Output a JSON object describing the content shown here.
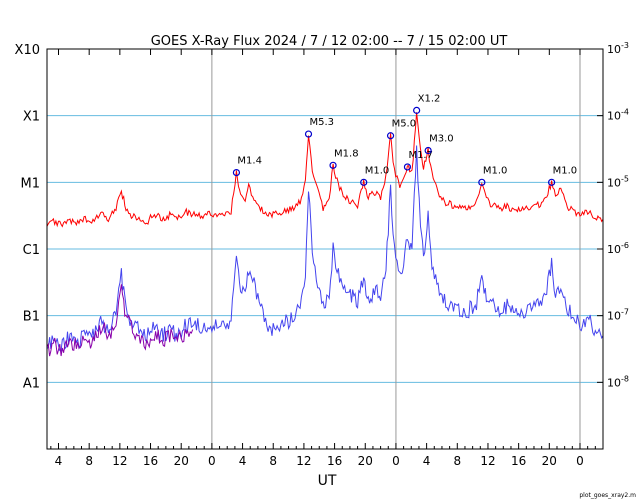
{
  "chart_data": {
    "type": "line",
    "title": "GOES X-Ray Flux   2024  /  7  /  12    02:00  --   7  /  15    02:00    UT",
    "xlabel": "UT",
    "footer": "plot_goes_xray2.m",
    "x_range_hours": [
      -21.5,
      51.0
    ],
    "x_ticks": [
      {
        "h": -20,
        "label": "4"
      },
      {
        "h": -16,
        "label": "8"
      },
      {
        "h": -12,
        "label": "12"
      },
      {
        "h": -8,
        "label": "16"
      },
      {
        "h": -4,
        "label": "20"
      },
      {
        "h": 0,
        "label": "0"
      },
      {
        "h": 4,
        "label": "4"
      },
      {
        "h": 8,
        "label": "8"
      },
      {
        "h": 12,
        "label": "12"
      },
      {
        "h": 16,
        "label": "16"
      },
      {
        "h": 20,
        "label": "20"
      },
      {
        "h": 24,
        "label": "0"
      },
      {
        "h": 28,
        "label": "4"
      },
      {
        "h": 32,
        "label": "8"
      },
      {
        "h": 36,
        "label": "12"
      },
      {
        "h": 40,
        "label": "16"
      },
      {
        "h": 44,
        "label": "20"
      },
      {
        "h": 48,
        "label": "0"
      }
    ],
    "day_boundaries_hours": [
      0,
      24,
      48
    ],
    "y_scale": "log",
    "y_range": [
      1e-09,
      0.001
    ],
    "left_class_labels": [
      {
        "label": "X10",
        "value": 0.001
      },
      {
        "label": "X1",
        "value": 0.0001
      },
      {
        "label": "M1",
        "value": 1e-05
      },
      {
        "label": "C1",
        "value": 1e-06
      },
      {
        "label": "B1",
        "value": 1e-07
      },
      {
        "label": "A1",
        "value": 1e-08
      }
    ],
    "right_tick_labels": [
      {
        "base": "10",
        "exp": "-3",
        "value": 0.001
      },
      {
        "base": "10",
        "exp": "-4",
        "value": 0.0001
      },
      {
        "base": "10",
        "exp": "-5",
        "value": 1e-05
      },
      {
        "base": "10",
        "exp": "-6",
        "value": 1e-06
      },
      {
        "base": "10",
        "exp": "-7",
        "value": 1e-07
      },
      {
        "base": "10",
        "exp": "-8",
        "value": 1e-08
      }
    ],
    "grid_levels": [
      0.0001,
      1e-05,
      1e-06,
      1e-07,
      1e-08
    ],
    "series": [
      {
        "color": "#ff0000",
        "points": [
          [
            -21.5,
            2.2e-06
          ],
          [
            -20.5,
            2.6e-06
          ],
          [
            -19.5,
            2.3e-06
          ],
          [
            -18.5,
            2.6e-06
          ],
          [
            -17.5,
            2.4e-06
          ],
          [
            -16.5,
            2.8e-06
          ],
          [
            -15.5,
            2.5e-06
          ],
          [
            -14.5,
            3.5e-06
          ],
          [
            -13.5,
            2.8e-06
          ],
          [
            -12.5,
            4e-06
          ],
          [
            -11.8,
            7.5e-06
          ],
          [
            -11.2,
            4e-06
          ],
          [
            -10.5,
            3.2e-06
          ],
          [
            -9.5,
            2.7e-06
          ],
          [
            -8.5,
            2.5e-06
          ],
          [
            -7.5,
            3.4e-06
          ],
          [
            -6.5,
            2.8e-06
          ],
          [
            -5.5,
            3.2e-06
          ],
          [
            -4.5,
            2.9e-06
          ],
          [
            -3.5,
            3.6e-06
          ],
          [
            -2.5,
            3.4e-06
          ],
          [
            -1.5,
            3.2e-06
          ],
          [
            -0.5,
            3.3e-06
          ],
          [
            0.5,
            3.3e-06
          ],
          [
            1.5,
            3.2e-06
          ],
          [
            2.5,
            3.6e-06
          ],
          [
            3.2,
            1.4e-05
          ],
          [
            3.6,
            7e-06
          ],
          [
            4.2,
            5e-06
          ],
          [
            4.8,
            9e-06
          ],
          [
            5.5,
            5e-06
          ],
          [
            6.5,
            4e-06
          ],
          [
            7.5,
            3.2e-06
          ],
          [
            8.5,
            3.4e-06
          ],
          [
            9.5,
            3.7e-06
          ],
          [
            10.5,
            4e-06
          ],
          [
            11.5,
            5e-06
          ],
          [
            12.2,
            1e-05
          ],
          [
            12.6,
            5.3e-05
          ],
          [
            13.1,
            1.5e-05
          ],
          [
            13.8,
            8e-06
          ],
          [
            14.5,
            4e-06
          ],
          [
            15.3,
            6e-06
          ],
          [
            15.8,
            1.8e-05
          ],
          [
            16.5,
            9e-06
          ],
          [
            17.3,
            6e-06
          ],
          [
            18.2,
            5e-06
          ],
          [
            19,
            4.5e-06
          ],
          [
            19.8,
            1e-05
          ],
          [
            20.4,
            6e-06
          ],
          [
            21.2,
            7e-06
          ],
          [
            22,
            6e-06
          ],
          [
            22.7,
            1.2e-05
          ],
          [
            23.3,
            5e-05
          ],
          [
            23.8,
            1.5e-05
          ],
          [
            24.5,
            9e-06
          ],
          [
            25,
            1.1e-05
          ],
          [
            25.5,
            1.7e-05
          ],
          [
            26.1,
            1.4e-05
          ],
          [
            26.7,
            0.00012
          ],
          [
            27.2,
            3e-05
          ],
          [
            27.6,
            1.6e-05
          ],
          [
            28.2,
            3e-05
          ],
          [
            28.7,
            1.4e-05
          ],
          [
            29.5,
            7e-06
          ],
          [
            30.5,
            5e-06
          ],
          [
            31.5,
            4.5e-06
          ],
          [
            32.5,
            4e-06
          ],
          [
            33.5,
            4.3e-06
          ],
          [
            34.5,
            5e-06
          ],
          [
            35.2,
            1e-05
          ],
          [
            35.8,
            5.5e-06
          ],
          [
            36.5,
            4.6e-06
          ],
          [
            37.5,
            4e-06
          ],
          [
            38.5,
            4.4e-06
          ],
          [
            39.5,
            3.7e-06
          ],
          [
            40.5,
            4e-06
          ],
          [
            41.5,
            4.2e-06
          ],
          [
            42.5,
            4.5e-06
          ],
          [
            43.5,
            5.5e-06
          ],
          [
            44.3,
            1e-05
          ],
          [
            44.8,
            6e-06
          ],
          [
            45.5,
            8e-06
          ],
          [
            46.2,
            4.5e-06
          ],
          [
            47,
            3.8e-06
          ],
          [
            48,
            3.2e-06
          ],
          [
            49,
            3.6e-06
          ],
          [
            50,
            3e-06
          ],
          [
            51,
            2.8e-06
          ]
        ]
      },
      {
        "color": "#4444ee",
        "points": [
          [
            -21.5,
            3.5e-08
          ],
          [
            -20.5,
            4.5e-08
          ],
          [
            -19.5,
            3.5e-08
          ],
          [
            -18.5,
            5e-08
          ],
          [
            -17.5,
            4e-08
          ],
          [
            -16.5,
            6e-08
          ],
          [
            -15.5,
            5e-08
          ],
          [
            -14.5,
            9e-08
          ],
          [
            -13.5,
            6e-08
          ],
          [
            -12.5,
            1e-07
          ],
          [
            -11.8,
            4e-07
          ],
          [
            -11.2,
            1.2e-07
          ],
          [
            -10.5,
            8e-08
          ],
          [
            -9.5,
            6e-08
          ],
          [
            -8.5,
            5e-08
          ],
          [
            -7.5,
            6.5e-08
          ],
          [
            -6.5,
            5e-08
          ],
          [
            -5.5,
            6e-08
          ],
          [
            -4.5,
            5e-08
          ],
          [
            -3.5,
            7e-08
          ],
          [
            -2.5,
            8e-08
          ],
          [
            -1.5,
            7e-08
          ],
          [
            -0.5,
            7e-08
          ],
          [
            0.5,
            7e-08
          ],
          [
            1.5,
            6.5e-08
          ],
          [
            2.5,
            8e-08
          ],
          [
            3.2,
            1e-06
          ],
          [
            3.6,
            3e-07
          ],
          [
            4.2,
            2e-07
          ],
          [
            4.8,
            5e-07
          ],
          [
            5.5,
            3e-07
          ],
          [
            6.5,
            1.2e-07
          ],
          [
            7.5,
            6e-08
          ],
          [
            8.5,
            6.5e-08
          ],
          [
            9.5,
            8e-08
          ],
          [
            10.5,
            9e-08
          ],
          [
            11.5,
            1.5e-07
          ],
          [
            12.2,
            4e-07
          ],
          [
            12.6,
            9e-06
          ],
          [
            13.1,
            1e-06
          ],
          [
            13.8,
            3e-07
          ],
          [
            14.5,
            1.3e-07
          ],
          [
            15.3,
            2e-07
          ],
          [
            15.8,
            1e-06
          ],
          [
            16.5,
            4e-07
          ],
          [
            17.3,
            2.5e-07
          ],
          [
            18.2,
            2e-07
          ],
          [
            19,
            1.5e-07
          ],
          [
            19.8,
            4e-07
          ],
          [
            20.4,
            1.6e-07
          ],
          [
            21.2,
            2.5e-07
          ],
          [
            22,
            1.8e-07
          ],
          [
            22.7,
            5e-07
          ],
          [
            23.3,
            8e-06
          ],
          [
            23.8,
            1e-06
          ],
          [
            24.5,
            4e-07
          ],
          [
            25,
            6e-07
          ],
          [
            25.5,
            1.5e-06
          ],
          [
            26.1,
            1e-06
          ],
          [
            26.7,
            3e-05
          ],
          [
            27.2,
            2e-06
          ],
          [
            27.6,
            8e-07
          ],
          [
            28.2,
            3e-06
          ],
          [
            28.7,
            6e-07
          ],
          [
            29.5,
            2.5e-07
          ],
          [
            30.5,
            1.5e-07
          ],
          [
            31.5,
            1.3e-07
          ],
          [
            32.5,
            1.1e-07
          ],
          [
            33.5,
            1.2e-07
          ],
          [
            34.5,
            1.6e-07
          ],
          [
            35.2,
            4e-07
          ],
          [
            35.8,
            1.8e-07
          ],
          [
            36.5,
            1.5e-07
          ],
          [
            37.5,
            1.2e-07
          ],
          [
            38.5,
            1.4e-07
          ],
          [
            39.5,
            1e-07
          ],
          [
            40.5,
            1.2e-07
          ],
          [
            41.5,
            1.3e-07
          ],
          [
            42.5,
            1.5e-07
          ],
          [
            43.5,
            2e-07
          ],
          [
            44.3,
            6e-07
          ],
          [
            44.8,
            2e-07
          ],
          [
            45.5,
            3e-07
          ],
          [
            46.2,
            1.4e-07
          ],
          [
            47,
            1e-07
          ],
          [
            48,
            7e-08
          ],
          [
            49,
            9e-08
          ],
          [
            50,
            6e-08
          ],
          [
            51,
            5e-08
          ]
        ]
      },
      {
        "color": "#8800aa",
        "points": [
          [
            -21.5,
            2.8e-08
          ],
          [
            -20.5,
            3.6e-08
          ],
          [
            -19.5,
            3e-08
          ],
          [
            -18.5,
            4e-08
          ],
          [
            -17.5,
            3.4e-08
          ],
          [
            -16.5,
            4.8e-08
          ],
          [
            -15.5,
            4e-08
          ],
          [
            -14.5,
            7e-08
          ],
          [
            -13.5,
            5e-08
          ],
          [
            -12.5,
            8e-08
          ],
          [
            -11.8,
            3e-07
          ],
          [
            -11.2,
            9e-08
          ],
          [
            -10.5,
            6.5e-08
          ],
          [
            -9.5,
            5e-08
          ],
          [
            -8.5,
            4e-08
          ],
          [
            -7.5,
            5.2e-08
          ],
          [
            -6.5,
            4.2e-08
          ],
          [
            -5.5,
            5e-08
          ],
          [
            -4.5,
            4.2e-08
          ],
          [
            -3.5,
            5.5e-08
          ],
          [
            -2.5,
            6.2e-08
          ]
        ]
      }
    ],
    "flares": [
      {
        "label": "M1.4",
        "h": 3.2,
        "value": 1.4e-05
      },
      {
        "label": "M5.3",
        "h": 12.6,
        "value": 5.3e-05
      },
      {
        "label": "M1.8",
        "h": 15.8,
        "value": 1.8e-05
      },
      {
        "label": "M1.0",
        "h": 19.8,
        "value": 1e-05
      },
      {
        "label": "M5.0",
        "h": 23.3,
        "value": 5e-05
      },
      {
        "label": "M1.7",
        "h": 25.5,
        "value": 1.7e-05
      },
      {
        "label": "X1.2",
        "h": 26.7,
        "value": 0.00012
      },
      {
        "label": "M3.0",
        "h": 28.2,
        "value": 3e-05
      },
      {
        "label": "M1.0",
        "h": 35.2,
        "value": 1e-05
      },
      {
        "label": "M1.0",
        "h": 44.3,
        "value": 1e-05
      }
    ],
    "colors": {
      "grid": "#66bbe0",
      "day_line": "#999999",
      "marker": "#0000cc",
      "frame": "#000000"
    }
  }
}
